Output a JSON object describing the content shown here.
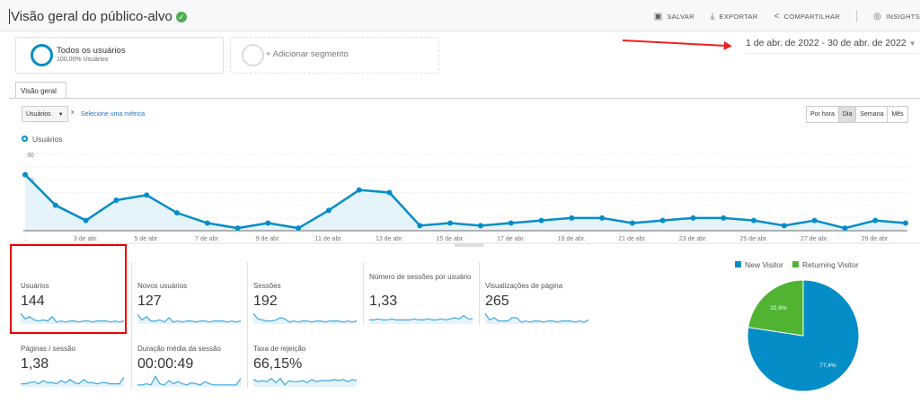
{
  "header": {
    "title": "Visão geral do público-alvo",
    "verified_icon": "check-shield-icon",
    "actions": [
      {
        "label": "SALVAR",
        "icon": "save-icon"
      },
      {
        "label": "EXPORTAR",
        "icon": "download-icon"
      },
      {
        "label": "COMPARTILHAR",
        "icon": "share-icon"
      },
      {
        "label": "INSIGHTS",
        "icon": "insights-icon"
      }
    ]
  },
  "segments": {
    "primary": {
      "title": "Todos os usuários",
      "subtitle": "100,00% Usuários"
    },
    "add": "+ Adicionar segmento"
  },
  "date_range": "1 de abr. de 2022 - 30 de abr. de 2022",
  "tabs": [
    {
      "label": "Visão geral"
    }
  ],
  "metric_selector": {
    "value": "Usuários",
    "remove": "x",
    "link": "Selecione uma métrica"
  },
  "granularity": [
    {
      "label": "Por hora"
    },
    {
      "label": "Dia",
      "active": true
    },
    {
      "label": "Semana"
    },
    {
      "label": "Mês"
    }
  ],
  "colors": {
    "accent": "#058dc7",
    "returning": "#50b432",
    "highlight": "#e00000"
  },
  "chart_data": [
    {
      "type": "area",
      "legend": "Usuários",
      "ylim": [
        0,
        30
      ],
      "yticks": [
        "30",
        "20",
        "10"
      ],
      "x": [
        "1 de abr.",
        "2 de abr.",
        "3 de abr.",
        "4 de abr.",
        "5 de abr.",
        "6 de abr.",
        "7 de abr.",
        "8 de abr.",
        "9 de abr.",
        "10 de abr.",
        "11 de abr.",
        "12 de abr.",
        "13 de abr.",
        "14 de abr.",
        "15 de abr.",
        "16 de abr.",
        "17 de abr.",
        "18 de abr.",
        "19 de abr.",
        "20 de abr.",
        "21 de abr.",
        "22 de abr.",
        "23 de abr.",
        "24 de abr.",
        "25 de abr.",
        "26 de abr.",
        "27 de abr.",
        "28 de abr.",
        "29 de abr.",
        "30 de abr."
      ],
      "xtick_labels": [
        "...",
        "3 de abr.",
        "5 de abr.",
        "7 de abr.",
        "9 de abr.",
        "11 de abr.",
        "13 de abr.",
        "15 de abr.",
        "17 de abr.",
        "19 de abr.",
        "21 de abr.",
        "23 de abr.",
        "25 de abr.",
        "27 de abr.",
        "29 de abr."
      ],
      "values": [
        22,
        10,
        4,
        12,
        14,
        7,
        3,
        1,
        3,
        1,
        8,
        16,
        15,
        2,
        3,
        2,
        3,
        4,
        5,
        5,
        3,
        4,
        5,
        5,
        4,
        2,
        4,
        1,
        4,
        3
      ]
    },
    {
      "type": "pie",
      "legend_placement": "top",
      "series": [
        {
          "name": "New Visitor",
          "value": 77.4,
          "label": "77,4%",
          "color": "#058dc7"
        },
        {
          "name": "Returning Visitor",
          "value": 22.6,
          "label": "22,6%",
          "color": "#50b432"
        }
      ]
    }
  ],
  "metrics": [
    {
      "label": "Usuários",
      "value": "144",
      "spark": [
        9,
        4,
        6,
        3,
        2,
        3,
        2,
        6,
        1,
        2,
        1,
        2,
        2,
        1,
        2,
        2,
        1,
        2,
        2,
        2,
        1,
        2,
        1,
        2
      ]
    },
    {
      "label": "Novos usuários",
      "value": "127",
      "spark": [
        8,
        3,
        6,
        2,
        2,
        3,
        1,
        5,
        1,
        2,
        1,
        2,
        2,
        1,
        2,
        2,
        1,
        2,
        2,
        2,
        1,
        2,
        1,
        2
      ]
    },
    {
      "label": "Sessões",
      "value": "192",
      "spark": [
        9,
        4,
        3,
        2,
        2,
        3,
        5,
        4,
        1,
        2,
        1,
        2,
        2,
        1,
        2,
        2,
        1,
        2,
        2,
        2,
        1,
        2,
        1,
        2
      ]
    },
    {
      "label": "Número de sessões por usuário",
      "value": "1,33",
      "spark": [
        3,
        3,
        4,
        3,
        3,
        4,
        3,
        3,
        3,
        3,
        4,
        3,
        3,
        4,
        3,
        3,
        4,
        3,
        4,
        5,
        4,
        7,
        4,
        4
      ]
    },
    {
      "label": "Visualizações de página",
      "value": "265",
      "spark": [
        9,
        3,
        5,
        2,
        2,
        2,
        5,
        5,
        1,
        2,
        1,
        2,
        2,
        1,
        2,
        2,
        1,
        2,
        2,
        2,
        1,
        2,
        1,
        3
      ]
    },
    {
      "label": "Páginas / sessão",
      "value": "1,38",
      "spark": [
        2,
        2,
        3,
        4,
        2,
        5,
        3,
        3,
        2,
        5,
        3,
        6,
        3,
        2,
        6,
        3,
        3,
        2,
        3,
        3,
        2,
        2,
        2,
        8
      ]
    },
    {
      "label": "Duração média da sessão",
      "value": "00:00:49",
      "spark": [
        1,
        1,
        2,
        1,
        9,
        2,
        1,
        5,
        2,
        4,
        2,
        1,
        3,
        2,
        1,
        4,
        2,
        1,
        1,
        1,
        1,
        1,
        1,
        7
      ]
    },
    {
      "label": "Taxa de rejeição",
      "value": "66,15%",
      "spark": [
        6,
        4,
        5,
        4,
        7,
        3,
        7,
        1,
        5,
        4,
        4,
        5,
        3,
        6,
        4,
        5,
        5,
        5,
        6,
        5,
        6,
        4,
        6,
        5
      ]
    }
  ]
}
